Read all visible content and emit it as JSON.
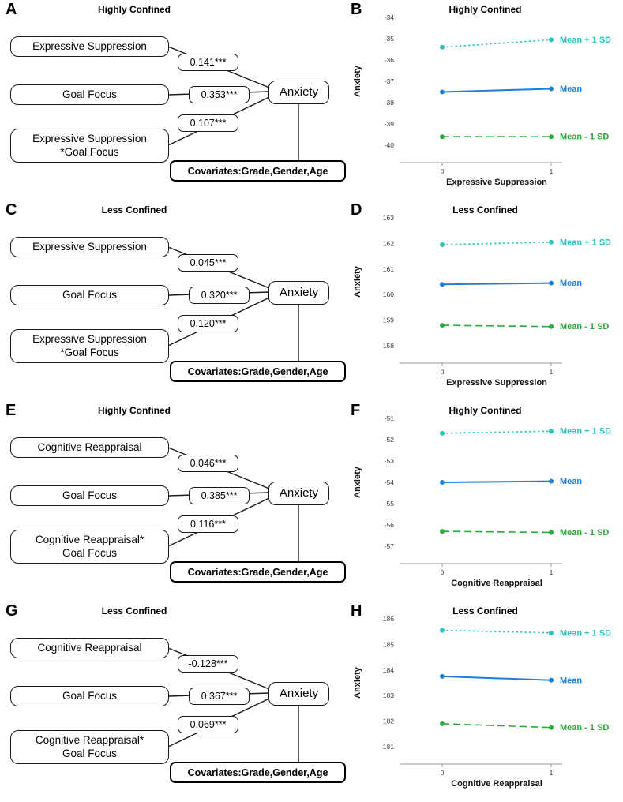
{
  "diagrams": [
    {
      "letter": "A",
      "title": "Highly Confined",
      "box1": "Expressive Suppression",
      "box2": "Goal Focus",
      "box3_line1": "Expressive Suppression",
      "box3_line2": "*Goal Focus",
      "coef1": "0.141***",
      "coef2": "0.353***",
      "coef3": "0.107***",
      "outcome": "Anxiety",
      "covariates": "Covariates:Grade,Gender,Age"
    },
    {
      "letter": "C",
      "title": "Less Confined",
      "box1": "Expressive Suppression",
      "box2": "Goal Focus",
      "box3_line1": "Expressive Suppression",
      "box3_line2": "*Goal Focus",
      "coef1": "0.045***",
      "coef2": "0.320***",
      "coef3": "0.120***",
      "outcome": "Anxiety",
      "covariates": "Covariates:Grade,Gender,Age"
    },
    {
      "letter": "E",
      "title": "Highly Confined",
      "box1": "Cognitive Reappraisal",
      "box2": "Goal Focus",
      "box3_line1": "Cognitive Reappraisal*",
      "box3_line2": "Goal Focus",
      "coef1": "0.046***",
      "coef2": "0.385***",
      "coef3": "0.116***",
      "outcome": "Anxiety",
      "covariates": "Covariates:Grade,Gender,Age"
    },
    {
      "letter": "G",
      "title": "Less Confined",
      "box1": "Cognitive Reappraisal",
      "box2": "Goal Focus",
      "box3_line1": "Cognitive Reappraisal*",
      "box3_line2": "Goal Focus",
      "coef1": "-0.128***",
      "coef2": "0.367***",
      "coef3": "0.069***",
      "outcome": "Anxiety",
      "covariates": "Covariates:Grade,Gender,Age"
    }
  ],
  "chart_data": [
    {
      "panel": "B",
      "type": "line",
      "title": "Highly Confined",
      "xlabel": "Expressive Suppression",
      "ylabel": "Anxiety",
      "x": [
        0,
        1
      ],
      "ylim": [
        -40,
        -34
      ],
      "yticks": [
        -34,
        -35,
        -36,
        -37,
        -38,
        -39,
        -40
      ],
      "legend_position": "right",
      "grid": false,
      "series": [
        {
          "name": "Mean + 1 SD",
          "values": [
            -35.4,
            -35.05
          ],
          "color": "#2bc4bf",
          "style": "dotted"
        },
        {
          "name": "Mean",
          "values": [
            -37.5,
            -37.35
          ],
          "color": "#1f7fd8",
          "style": "solid"
        },
        {
          "name": "Mean - 1 SD",
          "values": [
            -39.6,
            -39.6
          ],
          "color": "#2fa83c",
          "style": "dashed"
        }
      ]
    },
    {
      "panel": "D",
      "type": "line",
      "title": "Less Confined",
      "xlabel": "Expressive Suppression",
      "ylabel": "Anxiety",
      "x": [
        0,
        1
      ],
      "ylim": [
        158,
        163
      ],
      "yticks": [
        163,
        162,
        161,
        160,
        159,
        158
      ],
      "legend_position": "right",
      "grid": false,
      "series": [
        {
          "name": "Mean + 1 SD",
          "values": [
            161.95,
            162.05
          ],
          "color": "#2bc4bf",
          "style": "dotted"
        },
        {
          "name": "Mean",
          "values": [
            160.4,
            160.45
          ],
          "color": "#1f7fd8",
          "style": "solid"
        },
        {
          "name": "Mean - 1 SD",
          "values": [
            158.8,
            158.75
          ],
          "color": "#2fa83c",
          "style": "dashed"
        }
      ]
    },
    {
      "panel": "F",
      "type": "line",
      "title": "Highly Confined",
      "xlabel": "Cognitive Reappraisal",
      "ylabel": "Anxiety",
      "x": [
        0,
        1
      ],
      "ylim": [
        -57,
        -51
      ],
      "yticks": [
        -51,
        -52,
        -53,
        -54,
        -55,
        -56,
        -57
      ],
      "legend_position": "right",
      "grid": false,
      "series": [
        {
          "name": "Mean + 1 SD",
          "values": [
            -51.7,
            -51.6
          ],
          "color": "#2bc4bf",
          "style": "dotted"
        },
        {
          "name": "Mean",
          "values": [
            -54.0,
            -53.95
          ],
          "color": "#1f7fd8",
          "style": "solid"
        },
        {
          "name": "Mean - 1 SD",
          "values": [
            -56.3,
            -56.35
          ],
          "color": "#2fa83c",
          "style": "dashed"
        }
      ]
    },
    {
      "panel": "H",
      "type": "line",
      "title": "Less Confined",
      "xlabel": "Cognitive Reappraisal",
      "ylabel": "Anxiety",
      "x": [
        0,
        1
      ],
      "ylim": [
        181,
        186
      ],
      "yticks": [
        186,
        185,
        184,
        183,
        182,
        181
      ],
      "legend_position": "right",
      "grid": false,
      "series": [
        {
          "name": "Mean + 1 SD",
          "values": [
            185.55,
            185.45
          ],
          "color": "#2bc4bf",
          "style": "dotted"
        },
        {
          "name": "Mean",
          "values": [
            183.75,
            183.6
          ],
          "color": "#1f7fd8",
          "style": "solid"
        },
        {
          "name": "Mean - 1 SD",
          "values": [
            181.9,
            181.75
          ],
          "color": "#2fa83c",
          "style": "dashed"
        }
      ]
    }
  ]
}
